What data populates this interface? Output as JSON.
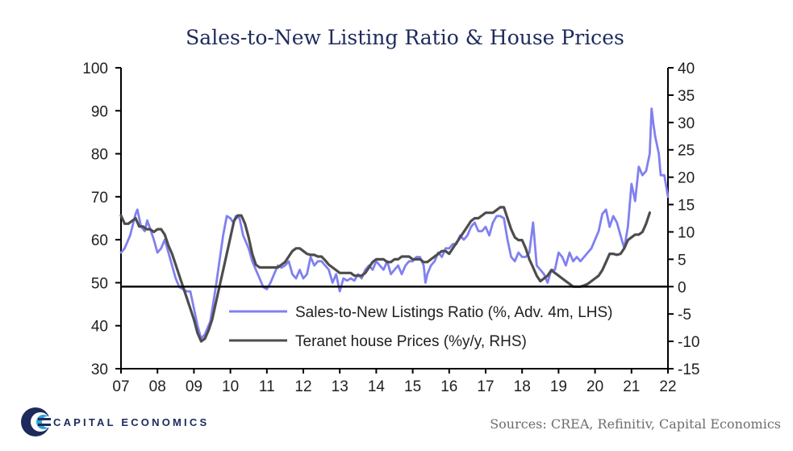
{
  "chart_data": {
    "type": "line",
    "title": "Sales-to-New Listing Ratio & House Prices",
    "x_ticks": [
      "07",
      "08",
      "09",
      "10",
      "11",
      "12",
      "13",
      "14",
      "15",
      "16",
      "17",
      "18",
      "19",
      "20",
      "21",
      "22"
    ],
    "x_range": [
      2007,
      2022
    ],
    "y_left": {
      "range": [
        30,
        100
      ],
      "ticks": [
        "100",
        "90",
        "80",
        "70",
        "60",
        "50",
        "40",
        "30"
      ]
    },
    "y_right": {
      "range": [
        -15,
        40
      ],
      "ticks": [
        "40",
        "35",
        "30",
        "25",
        "20",
        "15",
        "10",
        "5",
        "0",
        "-5",
        "-10",
        "-15"
      ]
    },
    "zero_line": 0,
    "legend_position": "bottom-center",
    "series": [
      {
        "name": "Sales-to-New Listings Ratio (%, Adv. 4m, LHS)",
        "axis": "left",
        "color": "#8080f0",
        "points": [
          [
            2007.0,
            57
          ],
          [
            2007.1,
            58
          ],
          [
            2007.25,
            61
          ],
          [
            2007.4,
            66
          ],
          [
            2007.45,
            67
          ],
          [
            2007.55,
            63
          ],
          [
            2007.65,
            62
          ],
          [
            2007.72,
            64.5
          ],
          [
            2007.8,
            62.5
          ],
          [
            2007.9,
            60
          ],
          [
            2008.0,
            57
          ],
          [
            2008.1,
            58
          ],
          [
            2008.2,
            60
          ],
          [
            2008.3,
            57
          ],
          [
            2008.4,
            54
          ],
          [
            2008.5,
            51
          ],
          [
            2008.6,
            49
          ],
          [
            2008.7,
            48.5
          ],
          [
            2008.8,
            48
          ],
          [
            2008.9,
            48
          ],
          [
            2009.0,
            44
          ],
          [
            2009.1,
            40
          ],
          [
            2009.2,
            37
          ],
          [
            2009.3,
            38
          ],
          [
            2009.45,
            41
          ],
          [
            2009.6,
            49
          ],
          [
            2009.7,
            55
          ],
          [
            2009.8,
            61
          ],
          [
            2009.9,
            65.5
          ],
          [
            2010.0,
            65
          ],
          [
            2010.08,
            64
          ],
          [
            2010.15,
            65.5
          ],
          [
            2010.25,
            65
          ],
          [
            2010.35,
            61
          ],
          [
            2010.5,
            58
          ],
          [
            2010.6,
            55
          ],
          [
            2010.7,
            53
          ],
          [
            2010.8,
            51
          ],
          [
            2010.9,
            49
          ],
          [
            2011.0,
            48.5
          ],
          [
            2011.1,
            50
          ],
          [
            2011.2,
            52
          ],
          [
            2011.3,
            54
          ],
          [
            2011.4,
            53.5
          ],
          [
            2011.5,
            54
          ],
          [
            2011.6,
            55
          ],
          [
            2011.7,
            52
          ],
          [
            2011.8,
            51
          ],
          [
            2011.9,
            53
          ],
          [
            2012.0,
            51
          ],
          [
            2012.1,
            52
          ],
          [
            2012.2,
            56
          ],
          [
            2012.3,
            54
          ],
          [
            2012.4,
            55
          ],
          [
            2012.5,
            55
          ],
          [
            2012.6,
            54
          ],
          [
            2012.7,
            53
          ],
          [
            2012.8,
            50
          ],
          [
            2012.9,
            52
          ],
          [
            2013.0,
            48
          ],
          [
            2013.1,
            51
          ],
          [
            2013.2,
            50.5
          ],
          [
            2013.3,
            51
          ],
          [
            2013.4,
            50.5
          ],
          [
            2013.5,
            52
          ],
          [
            2013.6,
            51
          ],
          [
            2013.7,
            53
          ],
          [
            2013.8,
            54
          ],
          [
            2013.9,
            53
          ],
          [
            2014.0,
            55
          ],
          [
            2014.1,
            54
          ],
          [
            2014.2,
            53
          ],
          [
            2014.3,
            55
          ],
          [
            2014.4,
            52
          ],
          [
            2014.5,
            53
          ],
          [
            2014.6,
            54
          ],
          [
            2014.7,
            52
          ],
          [
            2014.8,
            54
          ],
          [
            2014.9,
            55
          ],
          [
            2015.0,
            55
          ],
          [
            2015.1,
            56
          ],
          [
            2015.2,
            56
          ],
          [
            2015.3,
            54
          ],
          [
            2015.35,
            50
          ],
          [
            2015.4,
            52
          ],
          [
            2015.5,
            54
          ],
          [
            2015.6,
            55
          ],
          [
            2015.7,
            57
          ],
          [
            2015.8,
            56
          ],
          [
            2015.9,
            58
          ],
          [
            2016.0,
            58
          ],
          [
            2016.1,
            59
          ],
          [
            2016.2,
            59
          ],
          [
            2016.3,
            61
          ],
          [
            2016.4,
            60
          ],
          [
            2016.5,
            61
          ],
          [
            2016.6,
            63
          ],
          [
            2016.7,
            64
          ],
          [
            2016.8,
            62
          ],
          [
            2016.9,
            62
          ],
          [
            2017.0,
            63
          ],
          [
            2017.1,
            61
          ],
          [
            2017.2,
            64
          ],
          [
            2017.3,
            65.5
          ],
          [
            2017.4,
            65.5
          ],
          [
            2017.5,
            65
          ],
          [
            2017.6,
            60
          ],
          [
            2017.7,
            56
          ],
          [
            2017.8,
            55
          ],
          [
            2017.9,
            57
          ],
          [
            2018.0,
            56
          ],
          [
            2018.1,
            56
          ],
          [
            2018.2,
            57
          ],
          [
            2018.3,
            64
          ],
          [
            2018.4,
            54
          ],
          [
            2018.5,
            53
          ],
          [
            2018.6,
            52
          ],
          [
            2018.7,
            50
          ],
          [
            2018.8,
            53
          ],
          [
            2018.9,
            53
          ],
          [
            2019.0,
            57
          ],
          [
            2019.1,
            56
          ],
          [
            2019.2,
            54
          ],
          [
            2019.3,
            57
          ],
          [
            2019.4,
            55
          ],
          [
            2019.5,
            56
          ],
          [
            2019.6,
            55
          ],
          [
            2019.7,
            56
          ],
          [
            2019.8,
            57
          ],
          [
            2019.9,
            58
          ],
          [
            2020.0,
            60
          ],
          [
            2020.1,
            62
          ],
          [
            2020.2,
            66
          ],
          [
            2020.3,
            67
          ],
          [
            2020.4,
            63
          ],
          [
            2020.5,
            65.5
          ],
          [
            2020.6,
            64
          ],
          [
            2020.7,
            61
          ],
          [
            2020.8,
            58
          ],
          [
            2020.9,
            63
          ],
          [
            2021.0,
            73
          ],
          [
            2021.1,
            69
          ],
          [
            2021.2,
            77
          ],
          [
            2021.3,
            75
          ],
          [
            2021.4,
            76
          ],
          [
            2021.5,
            80
          ],
          [
            2021.55,
            90.5
          ],
          [
            2021.6,
            87
          ],
          [
            2021.65,
            84
          ],
          [
            2021.75,
            80
          ],
          [
            2021.8,
            75
          ],
          [
            2021.9,
            75
          ],
          [
            2022.0,
            70
          ]
        ]
      },
      {
        "name": "Teranet house Prices (%y/y, RHS)",
        "axis": "right",
        "color": "#4d4d4d",
        "points": [
          [
            2007.0,
            13
          ],
          [
            2007.1,
            11.5
          ],
          [
            2007.2,
            11.5
          ],
          [
            2007.3,
            12
          ],
          [
            2007.4,
            12.5
          ],
          [
            2007.5,
            11
          ],
          [
            2007.6,
            11
          ],
          [
            2007.7,
            10.5
          ],
          [
            2007.8,
            10.5
          ],
          [
            2007.9,
            10
          ],
          [
            2008.0,
            10.5
          ],
          [
            2008.1,
            10.5
          ],
          [
            2008.2,
            9.5
          ],
          [
            2008.3,
            7.5
          ],
          [
            2008.4,
            6
          ],
          [
            2008.5,
            4
          ],
          [
            2008.6,
            2
          ],
          [
            2008.7,
            0
          ],
          [
            2008.8,
            -2
          ],
          [
            2008.9,
            -4
          ],
          [
            2009.0,
            -6
          ],
          [
            2009.1,
            -8.5
          ],
          [
            2009.2,
            -10
          ],
          [
            2009.3,
            -9.5
          ],
          [
            2009.4,
            -8
          ],
          [
            2009.5,
            -6
          ],
          [
            2009.6,
            -3
          ],
          [
            2009.7,
            0
          ],
          [
            2009.8,
            3
          ],
          [
            2009.9,
            6
          ],
          [
            2010.0,
            9
          ],
          [
            2010.1,
            12
          ],
          [
            2010.2,
            13
          ],
          [
            2010.3,
            13
          ],
          [
            2010.4,
            11.5
          ],
          [
            2010.5,
            9
          ],
          [
            2010.6,
            6
          ],
          [
            2010.7,
            4
          ],
          [
            2010.8,
            3.5
          ],
          [
            2010.9,
            3.5
          ],
          [
            2011.0,
            3.5
          ],
          [
            2011.1,
            3.5
          ],
          [
            2011.2,
            3.5
          ],
          [
            2011.3,
            3.5
          ],
          [
            2011.4,
            4
          ],
          [
            2011.5,
            4.5
          ],
          [
            2011.6,
            5.5
          ],
          [
            2011.7,
            6.5
          ],
          [
            2011.8,
            7
          ],
          [
            2011.9,
            7
          ],
          [
            2012.0,
            6.5
          ],
          [
            2012.1,
            6
          ],
          [
            2012.2,
            5.8
          ],
          [
            2012.3,
            5.8
          ],
          [
            2012.4,
            5.5
          ],
          [
            2012.5,
            5.5
          ],
          [
            2012.6,
            4.8
          ],
          [
            2012.7,
            4
          ],
          [
            2012.8,
            3.5
          ],
          [
            2012.9,
            3
          ],
          [
            2013.0,
            2.5
          ],
          [
            2013.1,
            2.5
          ],
          [
            2013.2,
            2.5
          ],
          [
            2013.3,
            2.5
          ],
          [
            2013.4,
            2
          ],
          [
            2013.5,
            2
          ],
          [
            2013.6,
            2
          ],
          [
            2013.7,
            2.5
          ],
          [
            2013.8,
            3.5
          ],
          [
            2013.9,
            4.5
          ],
          [
            2014.0,
            5
          ],
          [
            2014.1,
            5
          ],
          [
            2014.2,
            5
          ],
          [
            2014.3,
            4.5
          ],
          [
            2014.4,
            4.5
          ],
          [
            2014.5,
            5
          ],
          [
            2014.6,
            5
          ],
          [
            2014.7,
            5.5
          ],
          [
            2014.8,
            5.5
          ],
          [
            2014.9,
            5.5
          ],
          [
            2015.0,
            5
          ],
          [
            2015.1,
            5
          ],
          [
            2015.2,
            5
          ],
          [
            2015.3,
            4.5
          ],
          [
            2015.4,
            4.5
          ],
          [
            2015.5,
            5
          ],
          [
            2015.6,
            5.5
          ],
          [
            2015.7,
            6
          ],
          [
            2015.8,
            6.5
          ],
          [
            2015.9,
            6.5
          ],
          [
            2016.0,
            6
          ],
          [
            2016.1,
            7
          ],
          [
            2016.2,
            8
          ],
          [
            2016.3,
            9
          ],
          [
            2016.4,
            10
          ],
          [
            2016.5,
            11
          ],
          [
            2016.6,
            12
          ],
          [
            2016.7,
            12.5
          ],
          [
            2016.8,
            12.5
          ],
          [
            2016.9,
            13
          ],
          [
            2017.0,
            13.5
          ],
          [
            2017.1,
            13.5
          ],
          [
            2017.2,
            13.5
          ],
          [
            2017.3,
            14
          ],
          [
            2017.4,
            14.5
          ],
          [
            2017.5,
            14.5
          ],
          [
            2017.6,
            12.5
          ],
          [
            2017.7,
            10.5
          ],
          [
            2017.8,
            9
          ],
          [
            2017.9,
            8.5
          ],
          [
            2018.0,
            8.5
          ],
          [
            2018.1,
            7
          ],
          [
            2018.2,
            5
          ],
          [
            2018.3,
            3.5
          ],
          [
            2018.4,
            2
          ],
          [
            2018.5,
            1
          ],
          [
            2018.6,
            1.5
          ],
          [
            2018.7,
            2
          ],
          [
            2018.8,
            3
          ],
          [
            2018.9,
            2.5
          ],
          [
            2019.0,
            2
          ],
          [
            2019.1,
            1.5
          ],
          [
            2019.2,
            1
          ],
          [
            2019.3,
            0.5
          ],
          [
            2019.4,
            0
          ],
          [
            2019.5,
            0
          ],
          [
            2019.6,
            0
          ],
          [
            2019.7,
            0.2
          ],
          [
            2019.8,
            0.5
          ],
          [
            2019.9,
            1
          ],
          [
            2020.0,
            1.5
          ],
          [
            2020.1,
            2
          ],
          [
            2020.2,
            3
          ],
          [
            2020.3,
            4.5
          ],
          [
            2020.4,
            6
          ],
          [
            2020.5,
            6
          ],
          [
            2020.6,
            5.8
          ],
          [
            2020.7,
            6
          ],
          [
            2020.8,
            7
          ],
          [
            2020.9,
            8.5
          ],
          [
            2021.0,
            9
          ],
          [
            2021.1,
            9.5
          ],
          [
            2021.2,
            9.5
          ],
          [
            2021.3,
            10
          ],
          [
            2021.4,
            11.5
          ],
          [
            2021.5,
            13.5
          ]
        ]
      }
    ]
  },
  "footer": {
    "brand": "CAPITAL ECONOMICS",
    "sources": "Sources:  CREA, Refinitiv, Capital Economics"
  }
}
